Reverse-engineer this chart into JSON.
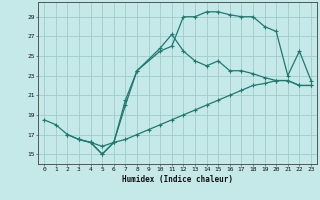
{
  "xlabel": "Humidex (Indice chaleur)",
  "xlim": [
    -0.5,
    23.5
  ],
  "ylim": [
    14.0,
    30.5
  ],
  "yticks": [
    15,
    17,
    19,
    21,
    23,
    25,
    27,
    29
  ],
  "xticks": [
    0,
    1,
    2,
    3,
    4,
    5,
    6,
    7,
    8,
    9,
    10,
    11,
    12,
    13,
    14,
    15,
    16,
    17,
    18,
    19,
    20,
    21,
    22,
    23
  ],
  "bg_color": "#c5e8e8",
  "grid_color": "#a0cccc",
  "line_color": "#1e7a70",
  "line1_x": [
    0,
    1,
    2,
    3,
    4,
    5,
    6,
    7,
    8,
    9,
    10,
    11,
    12,
    13,
    14,
    15,
    16,
    17,
    18,
    19,
    20,
    21,
    22,
    23
  ],
  "line1_y": [
    18.5,
    18.0,
    17.0,
    16.5,
    16.2,
    15.8,
    16.2,
    16.5,
    17.0,
    17.5,
    18.0,
    18.5,
    19.0,
    19.5,
    20.0,
    20.5,
    21.0,
    21.5,
    22.0,
    22.2,
    22.5,
    22.5,
    22.0,
    22.0
  ],
  "line2_x": [
    2,
    3,
    4,
    5,
    6,
    7,
    8,
    10,
    11,
    12,
    13,
    14,
    15,
    16,
    17,
    18,
    19,
    20,
    21,
    22,
    23
  ],
  "line2_y": [
    17.0,
    16.5,
    16.2,
    15.0,
    16.2,
    20.5,
    23.5,
    25.5,
    26.0,
    29.0,
    29.0,
    29.5,
    29.5,
    29.2,
    29.0,
    29.0,
    28.0,
    27.5,
    23.0,
    25.5,
    22.5
  ],
  "line3_x": [
    3,
    4,
    5,
    6,
    7,
    8,
    10,
    11,
    12,
    13,
    14,
    15,
    16,
    17,
    18,
    19,
    20,
    21,
    22,
    23
  ],
  "line3_y": [
    16.5,
    16.2,
    15.0,
    16.2,
    20.0,
    23.5,
    25.8,
    27.2,
    25.5,
    24.5,
    24.0,
    24.5,
    23.5,
    23.5,
    23.2,
    22.8,
    22.5,
    22.5,
    22.0,
    22.0
  ]
}
